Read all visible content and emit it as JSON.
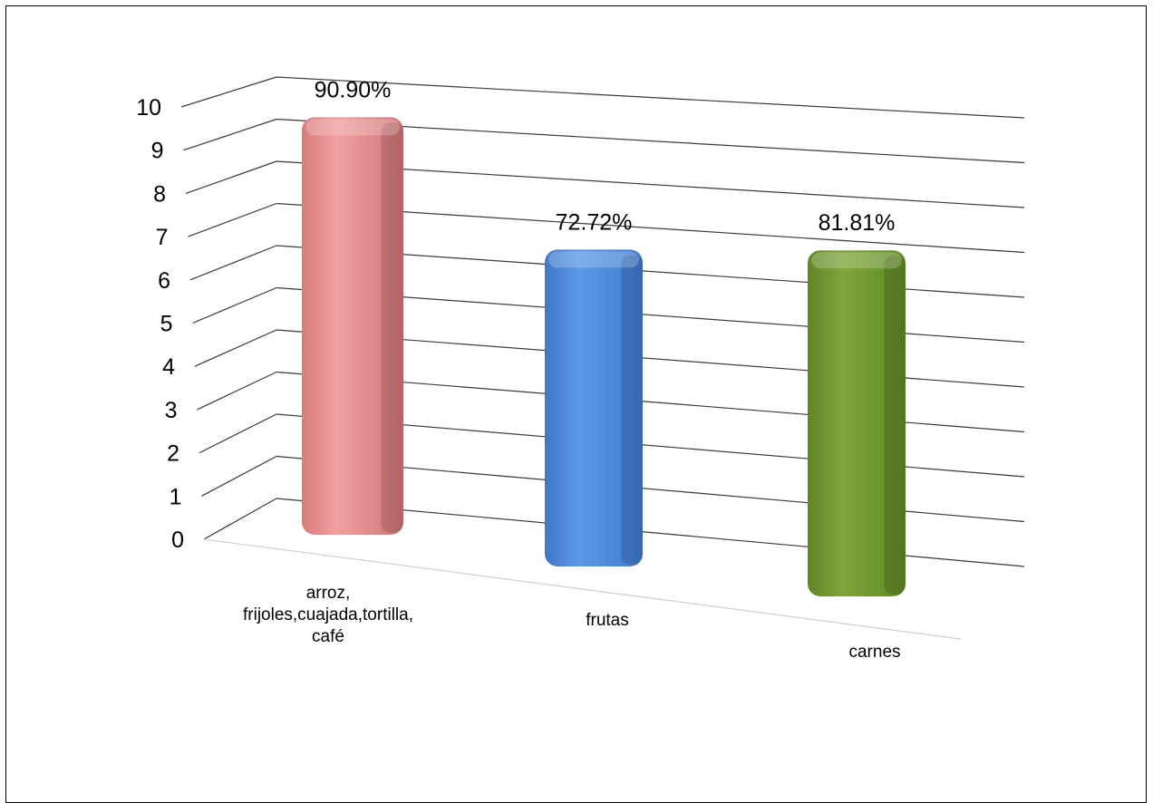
{
  "chart_data": {
    "type": "bar",
    "style": "3d-perspective-column",
    "categories": [
      [
        "arroz,",
        "frijoles,cuajada,tortilla,",
        "café"
      ],
      [
        "frutas"
      ],
      [
        "carnes"
      ]
    ],
    "values": [
      9.8,
      7.6,
      8.3
    ],
    "data_labels": [
      "90.90%",
      "72.72%",
      "81.81%"
    ],
    "colors": [
      "#e38b8b",
      "#4a86d8",
      "#70962f"
    ],
    "ylim": [
      0,
      10
    ],
    "yticks": [
      "0",
      "1",
      "2",
      "3",
      "4",
      "5",
      "6",
      "7",
      "8",
      "9",
      "10"
    ],
    "title": "",
    "xlabel": "",
    "ylabel": "",
    "grid": true,
    "legend": "none"
  }
}
